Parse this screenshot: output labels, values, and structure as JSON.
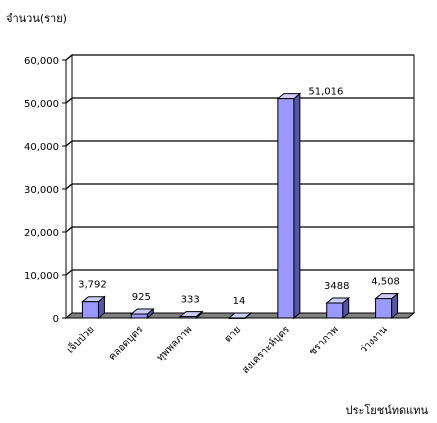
{
  "chart_data": {
    "type": "bar",
    "title": "",
    "ylabel": "จำนวน(ราย)",
    "xlabel": "ประโยชน์ทดแทน",
    "categories": [
      "เจ็บป่วย",
      "คลอดบุตร",
      "ทุพพลภาพ",
      "ตาย",
      "สงเคราะห์บุตร",
      "ชราภาพ",
      "ว่างงาน"
    ],
    "values": [
      3792,
      925,
      333,
      14,
      51016,
      3488,
      4508
    ],
    "data_labels": [
      "3,792",
      "925",
      "333",
      "14",
      "51,016",
      "3488",
      "4,508"
    ],
    "ylim": [
      0,
      60000
    ],
    "yticks": [
      0,
      10000,
      20000,
      30000,
      40000,
      50000,
      60000
    ],
    "ytick_labels": [
      "0",
      "10,000",
      "20,000",
      "30,000",
      "40,000",
      "50,000",
      "60,000"
    ],
    "grid": true,
    "legend": "none",
    "colors": {
      "bar_front": "#9999ff",
      "bar_top": "#ccccff",
      "bar_side": "#5555aa",
      "floor": "#808080"
    }
  }
}
